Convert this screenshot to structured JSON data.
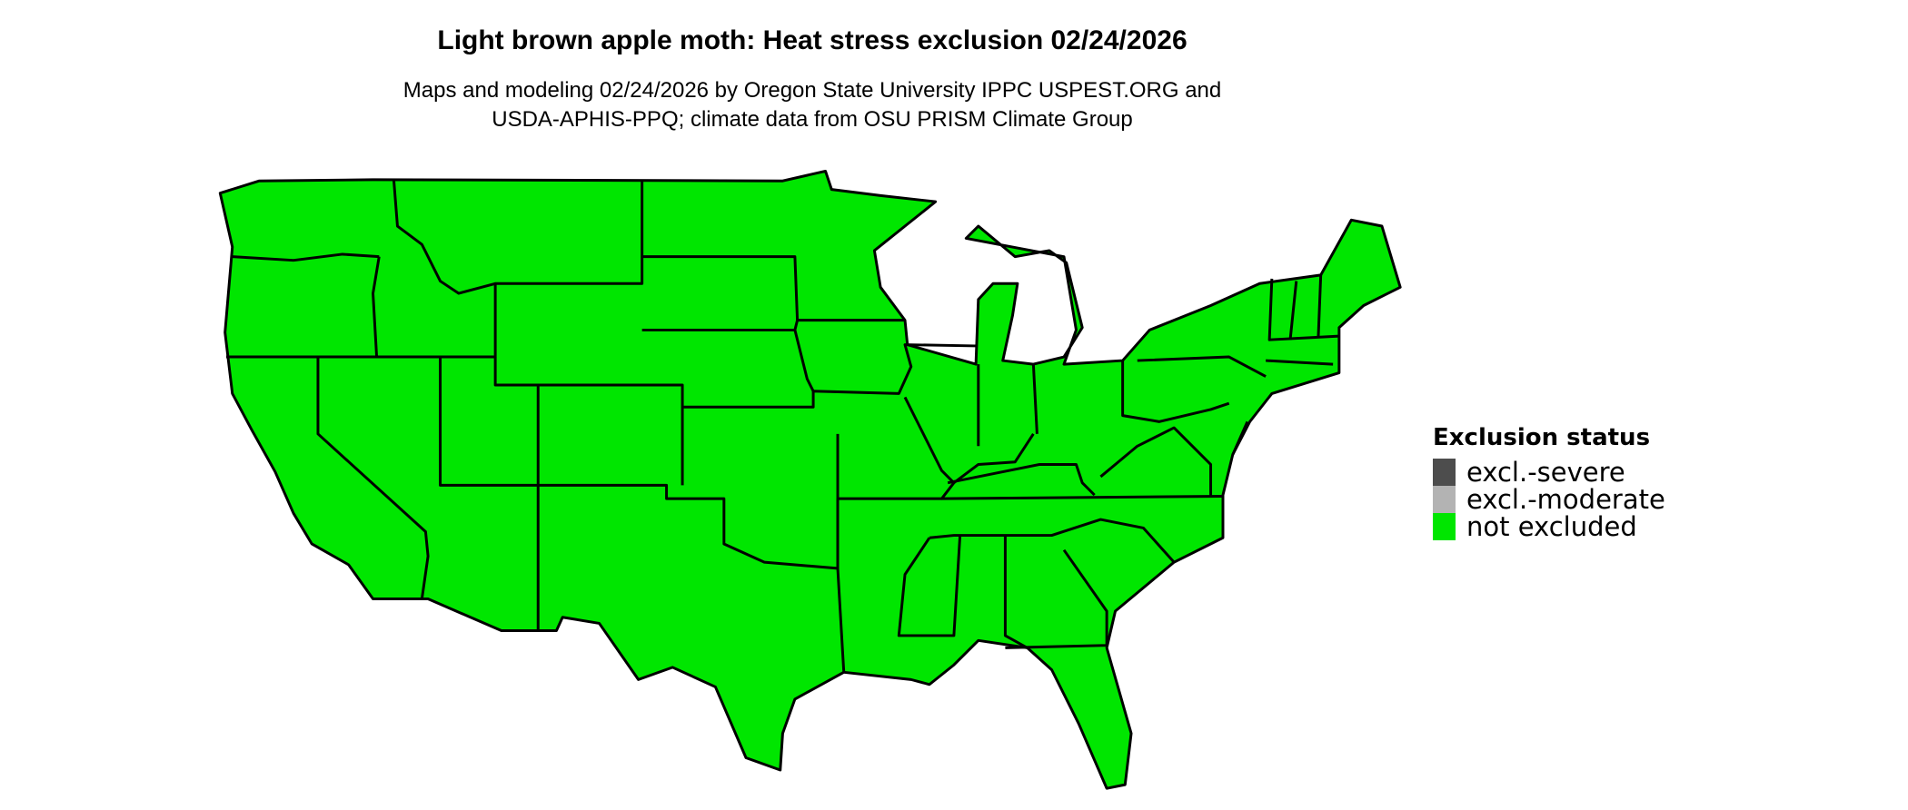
{
  "title": "Light brown apple moth: Heat stress exclusion 02/24/2026",
  "subtitle_line1": "Maps and modeling 02/24/2026 by Oregon State University IPPC USPEST.ORG and",
  "subtitle_line2": "USDA-APHIS-PPQ; climate data from OSU PRISM Climate Group",
  "map": {
    "region": "contiguous United States",
    "fill_status": "not excluded",
    "fill_color": "#00e600",
    "border_color": "#000000"
  },
  "legend": {
    "title": "Exclusion status",
    "items": [
      {
        "label": "excl.-severe",
        "color": "#4d4d4d"
      },
      {
        "label": "excl.-moderate",
        "color": "#b3b3b3"
      },
      {
        "label": "not excluded",
        "color": "#00e600"
      }
    ]
  }
}
